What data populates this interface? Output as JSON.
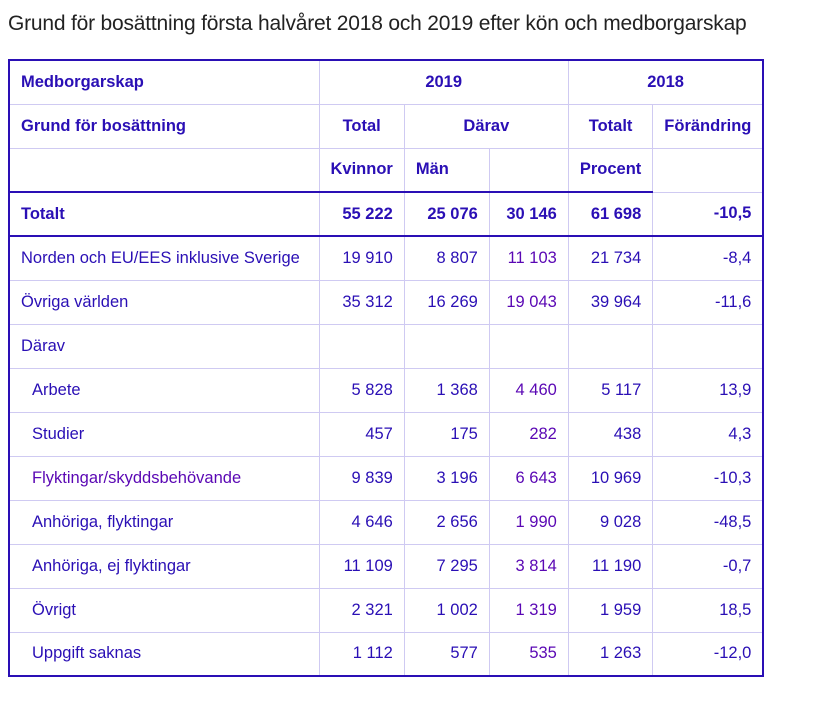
{
  "title": "Grund för bosättning första halvåret 2018 och 2019 efter kön och medborgarskap",
  "header": {
    "medborgarskap": "Medborgarskap",
    "y2019": "2019",
    "y2018": "2018",
    "grund": "Grund för bosättning",
    "total": "Total",
    "darav": "Därav",
    "totalt": "Totalt",
    "forandring": "Förändring",
    "kvinnor": "Kvinnor",
    "man": "Män",
    "procent": "Procent"
  },
  "rows": [
    {
      "label": "Totalt",
      "total": "55 222",
      "kvinnor": "25 076",
      "man": "30 146",
      "t2018": "61 698",
      "change": "-10,5"
    },
    {
      "label": "Norden och EU/EES inklusive Sverige",
      "total": "19 910",
      "kvinnor": "8 807",
      "man": "11 103",
      "t2018": "21 734",
      "change": "-8,4"
    },
    {
      "label": "Övriga världen",
      "total": "35 312",
      "kvinnor": "16 269",
      "man": "19 043",
      "t2018": "39 964",
      "change": "-11,6"
    },
    {
      "label": "Därav"
    },
    {
      "label": "Arbete",
      "total": "5 828",
      "kvinnor": "1 368",
      "man": "4 460",
      "t2018": "5 117",
      "change": "13,9"
    },
    {
      "label": "Studier",
      "total": "457",
      "kvinnor": "175",
      "man": "282",
      "t2018": "438",
      "change": "4,3"
    },
    {
      "label": "Flyktingar/skyddsbehövande",
      "total": "9 839",
      "kvinnor": "3 196",
      "man": "6 643",
      "t2018": "10 969",
      "change": "-10,3"
    },
    {
      "label": "Anhöriga, flyktingar",
      "total": "4 646",
      "kvinnor": "2 656",
      "man": "1 990",
      "t2018": "9 028",
      "change": "-48,5"
    },
    {
      "label": "Anhöriga, ej flyktingar",
      "total": "11 109",
      "kvinnor": "7 295",
      "man": "3 814",
      "t2018": "11 190",
      "change": "-0,7"
    },
    {
      "label": "Övrigt",
      "total": "2 321",
      "kvinnor": "1 002",
      "man": "1 319",
      "t2018": "1 959",
      "change": "18,5"
    },
    {
      "label": "Uppgift saknas",
      "total": "1 112",
      "kvinnor": "577",
      "man": "535",
      "t2018": "1 263",
      "change": "-12,0"
    }
  ]
}
